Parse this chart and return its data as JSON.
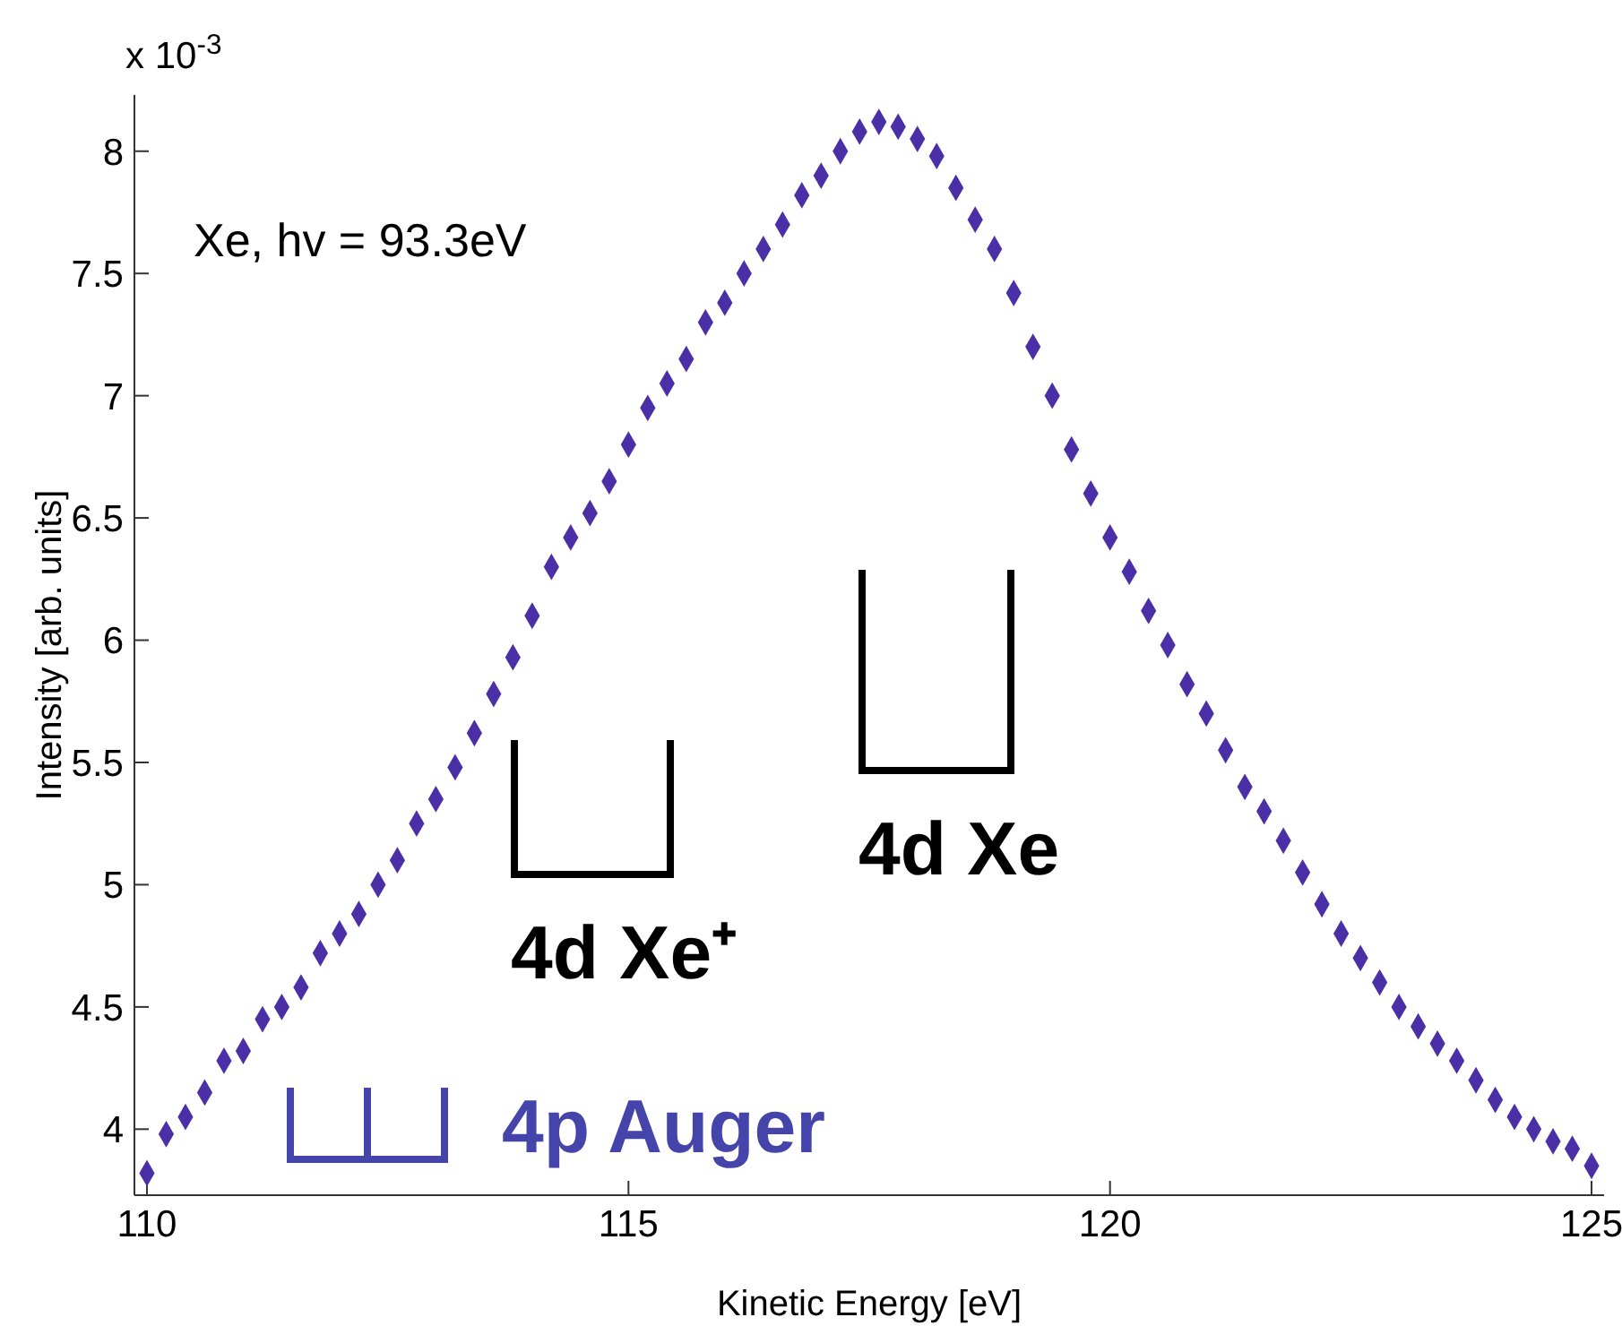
{
  "chart_data": {
    "type": "scatter",
    "xlabel": "Kinetic Energy [eV]",
    "ylabel": "Intensity [arb. units]",
    "x": [
      110.0,
      110.2,
      110.4,
      110.6,
      110.8,
      111.0,
      111.2,
      111.4,
      111.6,
      111.8,
      112.0,
      112.2,
      112.4,
      112.6,
      112.8,
      113.0,
      113.2,
      113.4,
      113.6,
      113.8,
      114.0,
      114.2,
      114.4,
      114.6,
      114.8,
      115.0,
      115.2,
      115.4,
      115.6,
      115.8,
      116.0,
      116.2,
      116.4,
      116.6,
      116.8,
      117.0,
      117.2,
      117.4,
      117.6,
      117.8,
      118.0,
      118.2,
      118.4,
      118.6,
      118.8,
      119.0,
      119.2,
      119.4,
      119.6,
      119.8,
      120.0,
      120.2,
      120.4,
      120.6,
      120.8,
      121.0,
      121.2,
      121.4,
      121.6,
      121.8,
      122.0,
      122.2,
      122.4,
      122.6,
      122.8,
      123.0,
      123.2,
      123.4,
      123.6,
      123.8,
      124.0,
      124.2,
      124.4,
      124.6,
      124.8,
      125.0
    ],
    "series": [
      {
        "color": "#4b2fa6",
        "values": [
          3.82,
          3.98,
          4.05,
          4.15,
          4.28,
          4.32,
          4.45,
          4.5,
          4.58,
          4.72,
          4.8,
          4.88,
          5.0,
          5.1,
          5.25,
          5.35,
          5.48,
          5.62,
          5.78,
          5.93,
          6.1,
          6.3,
          6.42,
          6.52,
          6.65,
          6.8,
          6.95,
          7.05,
          7.15,
          7.3,
          7.38,
          7.5,
          7.6,
          7.7,
          7.82,
          7.9,
          8.0,
          8.08,
          8.12,
          8.1,
          8.05,
          7.98,
          7.85,
          7.72,
          7.6,
          7.42,
          7.2,
          7.0,
          6.78,
          6.6,
          6.42,
          6.28,
          6.12,
          5.98,
          5.82,
          5.7,
          5.55,
          5.4,
          5.3,
          5.18,
          5.05,
          4.92,
          4.8,
          4.7,
          4.6,
          4.5,
          4.42,
          4.35,
          4.28,
          4.2,
          4.12,
          4.05,
          4.0,
          3.95,
          3.92,
          3.85
        ]
      }
    ],
    "marker": "diamond",
    "xlim": [
      109.87,
      125.13
    ],
    "xticks": [
      110,
      115,
      120,
      125
    ],
    "ylim": [
      3.73,
      8.23
    ],
    "yticks": [
      4,
      4.5,
      5,
      5.5,
      6,
      6.5,
      7,
      7.5,
      8
    ],
    "annotations": [
      "Xe, hv = 93.3eV",
      "x 10$^{-3}$",
      "4d Xe",
      "4d Xe⁺",
      "4p Auger"
    ]
  }
}
